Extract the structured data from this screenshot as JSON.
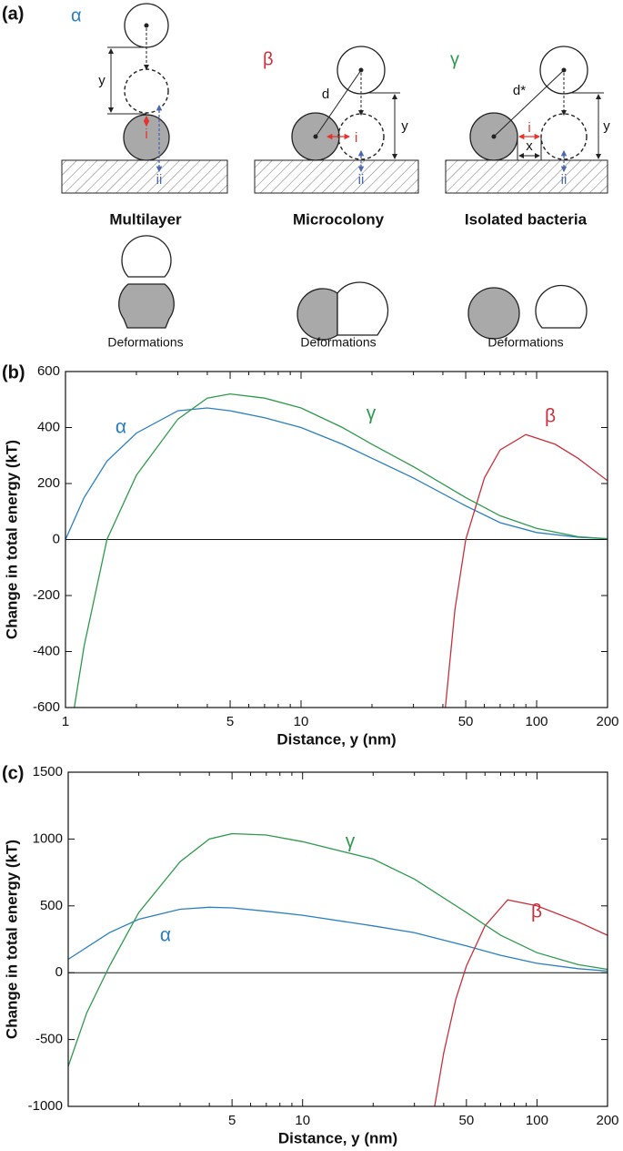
{
  "panel_a": {
    "label": "(a)",
    "cases": [
      {
        "symbol": "α",
        "title": "Multilayer",
        "caption": "Deformations"
      },
      {
        "symbol": "β",
        "title": "Microcolony",
        "caption": "Deformations"
      },
      {
        "symbol": "γ",
        "title": "Isolated bacteria",
        "caption": "Deformations"
      }
    ],
    "distance_labels": {
      "y": "y",
      "d": "d",
      "d_star": "d*",
      "x": "x"
    },
    "interaction_labels": {
      "i": "i",
      "ii": "ii"
    }
  },
  "chart_data": [
    {
      "type": "line",
      "panel_label": "(b)",
      "xscale": "log",
      "xlabel": "Distance, y (nm)",
      "ylabel": "Change in total energy (kT)",
      "xlim": [
        1,
        200
      ],
      "xticks": [
        1,
        5,
        10,
        50,
        100,
        200
      ],
      "minor_xticks": [
        2,
        3,
        4,
        6,
        7,
        8,
        9,
        20,
        30,
        40,
        60,
        70,
        80,
        90
      ],
      "ylim": [
        -600,
        600
      ],
      "yticks": [
        -600,
        -400,
        -200,
        0,
        200,
        400,
        600
      ],
      "zero_line": true,
      "series": [
        {
          "name": "α",
          "color": "#2a7fc1",
          "x": [
            1,
            1.2,
            1.5,
            2,
            3,
            4,
            5,
            7,
            10,
            15,
            20,
            30,
            50,
            70,
            100,
            150,
            200
          ],
          "values": [
            0,
            150,
            280,
            380,
            460,
            470,
            460,
            435,
            400,
            340,
            290,
            220,
            120,
            60,
            25,
            8,
            3
          ]
        },
        {
          "name": "β",
          "color": "#c8313d",
          "x": [
            41,
            45,
            50,
            60,
            70,
            90,
            120,
            150,
            200
          ],
          "values": [
            -600,
            -250,
            0,
            220,
            320,
            375,
            340,
            290,
            210
          ]
        },
        {
          "name": "γ",
          "color": "#2e9a4c",
          "x": [
            1.09,
            1.2,
            1.5,
            2,
            3,
            4,
            5,
            7,
            10,
            15,
            20,
            30,
            50,
            70,
            100,
            150,
            200
          ],
          "values": [
            -600,
            -380,
            0,
            230,
            430,
            505,
            520,
            505,
            470,
            400,
            340,
            260,
            150,
            85,
            40,
            10,
            3
          ]
        }
      ]
    },
    {
      "type": "line",
      "panel_label": "(c)",
      "xscale": "log",
      "xlabel": "Distance, y (nm)",
      "ylabel": "Change in total energy (kT)",
      "xlim": [
        1,
        200
      ],
      "xticks": [
        5,
        10,
        50,
        100,
        200
      ],
      "minor_xticks": [
        2,
        3,
        4,
        6,
        7,
        8,
        9,
        20,
        30,
        40,
        60,
        70,
        80,
        90
      ],
      "ylim": [
        -1000,
        1500
      ],
      "yticks": [
        -1000,
        -500,
        0,
        500,
        1000,
        1500
      ],
      "zero_line": true,
      "series": [
        {
          "name": "α",
          "color": "#2a7fc1",
          "x": [
            1,
            1.5,
            2,
            3,
            4,
            5,
            7,
            10,
            20,
            30,
            50,
            70,
            100,
            150,
            200
          ],
          "values": [
            100,
            300,
            400,
            475,
            490,
            485,
            460,
            430,
            350,
            300,
            200,
            130,
            70,
            30,
            12
          ]
        },
        {
          "name": "β",
          "color": "#c8313d",
          "x": [
            36.6,
            40,
            45,
            50,
            60,
            75,
            100,
            150,
            200
          ],
          "values": [
            -1000,
            -600,
            -200,
            50,
            350,
            545,
            500,
            380,
            280
          ]
        },
        {
          "name": "γ",
          "color": "#2e9a4c",
          "x": [
            1,
            1.2,
            1.5,
            2,
            3,
            4,
            5,
            7,
            10,
            20,
            30,
            50,
            70,
            100,
            150,
            200
          ],
          "values": [
            -700,
            -300,
            50,
            450,
            830,
            1000,
            1040,
            1030,
            980,
            850,
            700,
            450,
            280,
            150,
            60,
            25
          ]
        }
      ]
    }
  ]
}
